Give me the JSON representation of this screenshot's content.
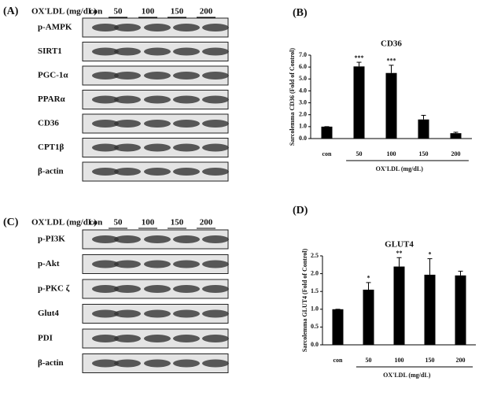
{
  "blots": [
    {
      "label": "(A)",
      "header": "OX'LDL (mg/dL)",
      "lanes": [
        "con",
        "50",
        "100",
        "150",
        "200"
      ],
      "rows": [
        "p-AMPK",
        "SIRT1",
        "PGC-1α",
        "PPARα",
        "CD36",
        "CPT1β",
        "β-actin"
      ]
    },
    {
      "label": "(C)",
      "header": "OX'LDL (mg/dL)",
      "lanes": [
        "con",
        "50",
        "100",
        "150",
        "200"
      ],
      "rows": [
        "p-PI3K",
        "p-Akt",
        "p-PKC ζ",
        "Glut4",
        "PDI",
        "β-actin"
      ]
    }
  ],
  "chart_data": [
    {
      "type": "bar",
      "panel": "(B)",
      "title": "CD36",
      "ylabel": "Sarcolemma CD36 (Fold of Control)",
      "xlabel": "OX'LDL (mg/dL)",
      "categories": [
        "con",
        "50",
        "100",
        "150",
        "200"
      ],
      "values": [
        1.0,
        6.05,
        5.5,
        1.6,
        0.45
      ],
      "errors": [
        0,
        0.35,
        0.65,
        0.35,
        0.08
      ],
      "color": "#000000",
      "ylim": [
        0,
        7
      ],
      "yticks": [
        {
          "value": 0,
          "label": "0.0"
        },
        {
          "value": 1,
          "label": "1.0"
        },
        {
          "value": 2,
          "label": "2.0"
        },
        {
          "value": 3,
          "label": "3.0"
        },
        {
          "value": 4,
          "label": "4.0"
        },
        {
          "value": 5,
          "label": "5.0"
        },
        {
          "value": 6,
          "label": "6.0"
        },
        {
          "value": 7,
          "label": "7.0"
        }
      ],
      "annotations": [
        {
          "x": "50",
          "text": "***"
        },
        {
          "x": "100",
          "text": "***"
        }
      ]
    },
    {
      "type": "bar",
      "panel": "(D)",
      "title": "GLUT4",
      "ylabel": "Sarcolemma GLUT4 (Fold of Control)",
      "xlabel": "OX'LDL (mg/dL)",
      "categories": [
        "con",
        "50",
        "100",
        "150",
        "200"
      ],
      "values": [
        1.0,
        1.55,
        2.2,
        1.97,
        1.95
      ],
      "errors": [
        0,
        0.2,
        0.25,
        0.45,
        0.12
      ],
      "color": "#000000",
      "ylim": [
        0,
        2.5
      ],
      "yticks": [
        {
          "value": 0,
          "label": "0.0"
        },
        {
          "value": 0.5,
          "label": "0.5"
        },
        {
          "value": 1,
          "label": "1.0"
        },
        {
          "value": 1.5,
          "label": "1.5"
        },
        {
          "value": 2,
          "label": "2.0"
        },
        {
          "value": 2.5,
          "label": "2.5"
        }
      ],
      "annotations": [
        {
          "x": "50",
          "text": "*"
        },
        {
          "x": "100",
          "text": "**"
        },
        {
          "x": "150",
          "text": "*"
        }
      ]
    }
  ]
}
